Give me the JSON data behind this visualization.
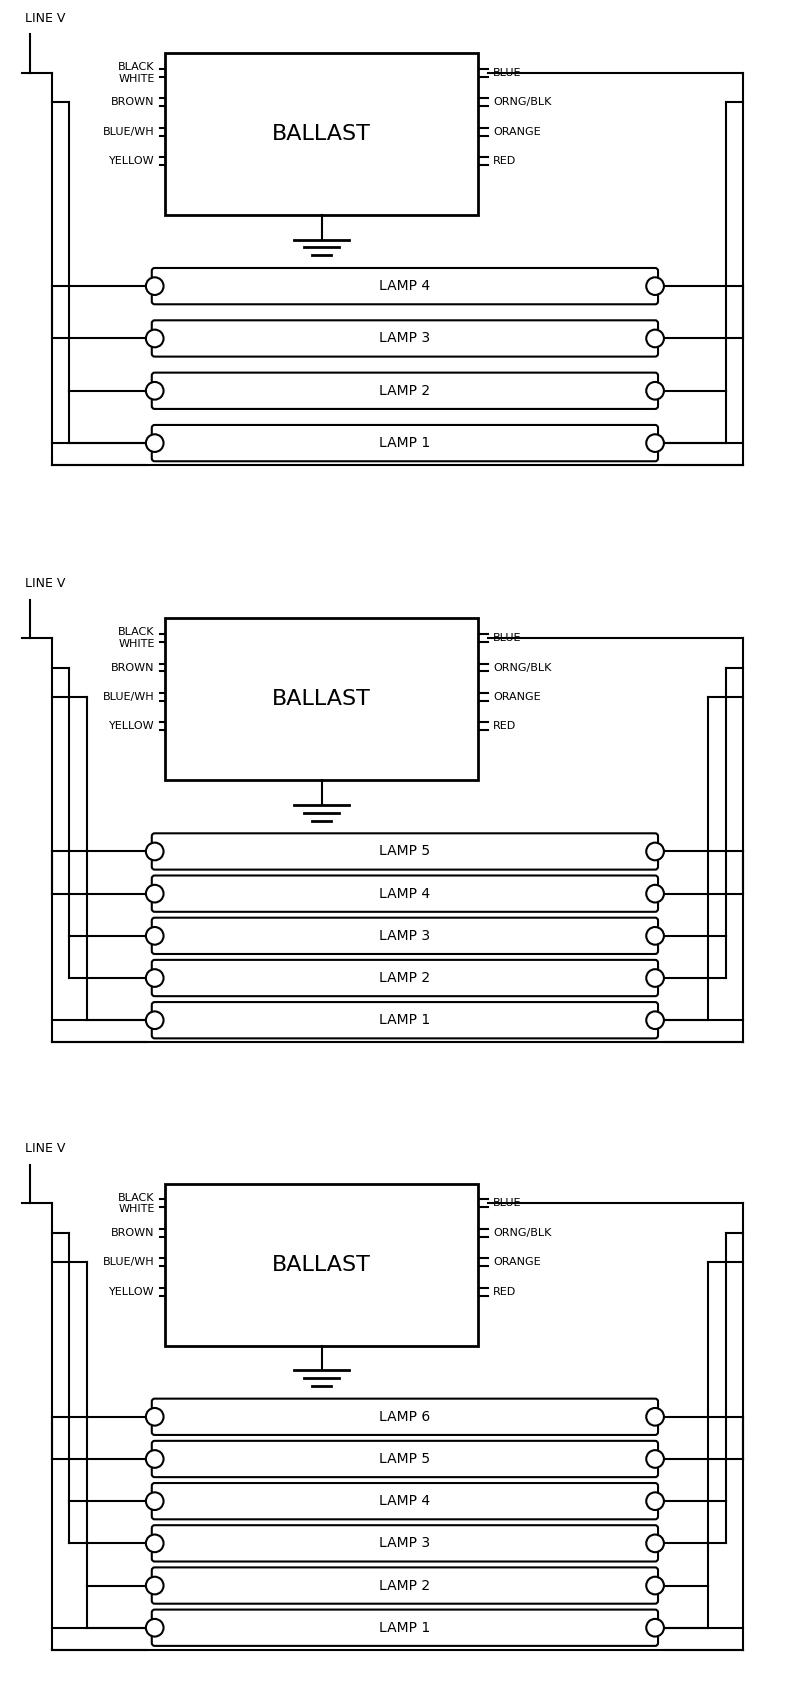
{
  "bg_color": "#ffffff",
  "line_color": "#000000",
  "diagrams": [
    {
      "num_lamps": 4,
      "lamps": [
        "LAMP 4",
        "LAMP 3",
        "LAMP 2",
        "LAMP 1"
      ]
    },
    {
      "num_lamps": 5,
      "lamps": [
        "LAMP 5",
        "LAMP 4",
        "LAMP 3",
        "LAMP 2",
        "LAMP 1"
      ]
    },
    {
      "num_lamps": 6,
      "lamps": [
        "LAMP 6",
        "LAMP 5",
        "LAMP 4",
        "LAMP 3",
        "LAMP 2",
        "LAMP 1"
      ]
    }
  ],
  "left_labels": [
    "BLACK\nWHITE",
    "BROWN",
    "BLUE/WH",
    "YELLOW"
  ],
  "right_labels": [
    "BLUE",
    "ORNG/BLK",
    "ORANGE",
    "RED"
  ],
  "ballast_text": "BALLAST",
  "line_v_text": "LINE V",
  "lw": 1.5
}
